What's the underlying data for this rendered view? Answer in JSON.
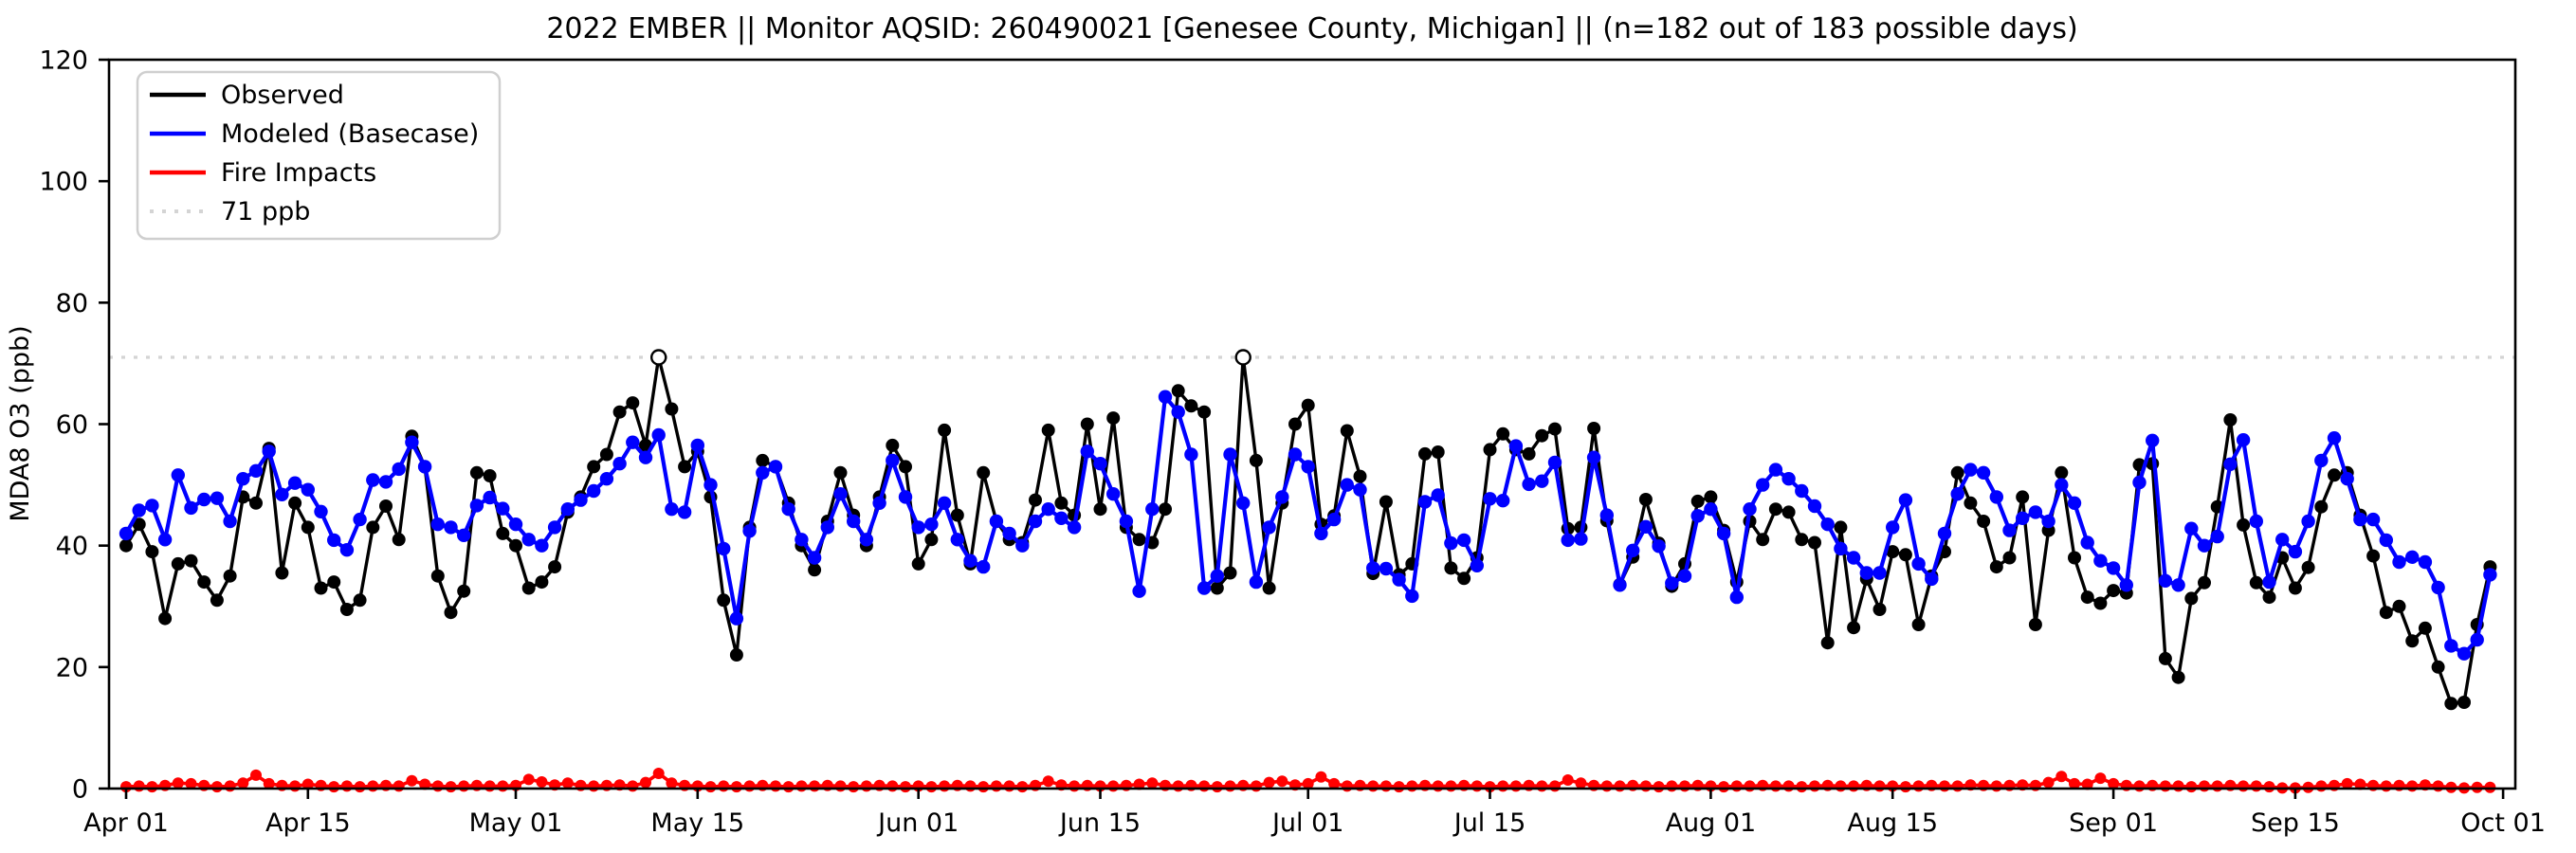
{
  "page": {
    "window_title": "2022 EMBER ozone time series figure"
  },
  "chart_data": {
    "type": "line",
    "title": "2022 EMBER || Monitor AQSID: 260490021 [Genesee County, Michigan] || (n=182 out of 183 possible days)",
    "ylabel": "MDA8 O3 (ppb)",
    "ylim": [
      0,
      120
    ],
    "yticks": [
      0,
      20,
      40,
      60,
      80,
      100,
      120
    ],
    "x_tick_labels": [
      "Apr 01",
      "Apr 15",
      "May 01",
      "May 15",
      "Jun 01",
      "Jun 15",
      "Jul 01",
      "Jul 15",
      "Aug 01",
      "Aug 15",
      "Sep 01",
      "Sep 15",
      "Oct 01"
    ],
    "x_tick_day_offsets": [
      0,
      14,
      30,
      44,
      61,
      75,
      91,
      105,
      122,
      136,
      153,
      167,
      183
    ],
    "n_days": 183,
    "date_range": "Apr 01 - Oct 01",
    "grid": false,
    "legend_position": "upper left",
    "threshold": {
      "value": 71,
      "label": "71 ppb",
      "color": "#d4d4d4"
    },
    "exceedance_day_indices": [
      41,
      86
    ],
    "series": [
      {
        "name": "Observed",
        "color": "#000000",
        "values": [
          40,
          43.5,
          39,
          28,
          37,
          37.5,
          34,
          31,
          35,
          48,
          47,
          56,
          35.5,
          47,
          43,
          33,
          34,
          29.5,
          31,
          43,
          46.5,
          41,
          58,
          53,
          35,
          29,
          32.5,
          52,
          51.5,
          42,
          40,
          33,
          34,
          36.5,
          45.5,
          48,
          53,
          55,
          62,
          63.5,
          56.5,
          71,
          62.5,
          53,
          55.5,
          48,
          31,
          22,
          43,
          54,
          53,
          47,
          40,
          36,
          44,
          52,
          45,
          40,
          48,
          56.5,
          53,
          37,
          41,
          59,
          45,
          37,
          52,
          44,
          41,
          40.5,
          47.5,
          59,
          47,
          45,
          60,
          46,
          61,
          43,
          41,
          40.5,
          46,
          65.5,
          63,
          62,
          33,
          35.5,
          71,
          54,
          33,
          47,
          60,
          63.1,
          43.5,
          44.9,
          58.9,
          51.4,
          35.4,
          47.2,
          35.2,
          37,
          55.1,
          55.4,
          36.3,
          34.6,
          38,
          55.8,
          58.4,
          55.8,
          55.1,
          58.1,
          59.2,
          42.8,
          43,
          59.3,
          44.1,
          33.6,
          38.1,
          47.6,
          40.4,
          33.3,
          37,
          47.3,
          48,
          42.5,
          34,
          44,
          41,
          46,
          45.5,
          41,
          40.5,
          24,
          43,
          26.5,
          34.5,
          29.5,
          39,
          38.5,
          27,
          35,
          39,
          52,
          47,
          44,
          36.5,
          38,
          48,
          27,
          42.5,
          52,
          38,
          31.5,
          30.5,
          32.6,
          32.2,
          53.3,
          53.5,
          21.4,
          18.3,
          31.3,
          33.9,
          46.4,
          60.7,
          43.4,
          33.9,
          31.5,
          38,
          33,
          36.4,
          46.4,
          51.6,
          52,
          45,
          38.3,
          29,
          30,
          24.3,
          26.4,
          20,
          14,
          14.2,
          27,
          36.5
        ]
      },
      {
        "name": "Modeled (Basecase)",
        "color": "#0000ff",
        "values": [
          42,
          45.8,
          46.6,
          41,
          51.6,
          46.2,
          47.6,
          47.8,
          44,
          51,
          52.3,
          55.5,
          48.4,
          50.3,
          49.2,
          45.6,
          40.9,
          39.3,
          44.3,
          50.8,
          50.5,
          52.6,
          57,
          53,
          43.5,
          43,
          41.7,
          46.6,
          47.9,
          46.1,
          43.5,
          41,
          40,
          43,
          46,
          47.5,
          49,
          51,
          53.5,
          57,
          54.5,
          58.2,
          46,
          45.5,
          56.5,
          50,
          39.5,
          28,
          42.4,
          52,
          53,
          46,
          41,
          38,
          43,
          48.5,
          44,
          41,
          47,
          54,
          48,
          43,
          43.5,
          47,
          41,
          37.5,
          36.5,
          44,
          42,
          40,
          44,
          46,
          44.5,
          43,
          55.5,
          53.5,
          48.5,
          44,
          32.5,
          46,
          64.5,
          62,
          55,
          33,
          35,
          55,
          47,
          34,
          43,
          48,
          55,
          53,
          42,
          44.3,
          50,
          49.2,
          36.3,
          36.2,
          34.4,
          31.7,
          47.2,
          48.3,
          40.4,
          40.9,
          36.7,
          47.7,
          47.4,
          56.4,
          50.1,
          50.6,
          53.7,
          40.9,
          41.1,
          54.5,
          45,
          33.5,
          39.2,
          43.1,
          39.9,
          33.8,
          35,
          44.9,
          46,
          42,
          31.5,
          46,
          50,
          52.5,
          51,
          49,
          46.5,
          43.5,
          39.5,
          38,
          35.5,
          35.5,
          43,
          47.5,
          37,
          34.5,
          42,
          48.5,
          52.5,
          52,
          48,
          42.5,
          44.5,
          45.5,
          44,
          50,
          47,
          40.5,
          37.5,
          36.3,
          33.5,
          50.4,
          57.3,
          34.2,
          33.5,
          42.8,
          40,
          41.5,
          53.4,
          57.4,
          44,
          34,
          41,
          39,
          44,
          54,
          57.7,
          51,
          44.3,
          44.3,
          40.9,
          37.3,
          38.1,
          37.3,
          33.1,
          23.5,
          22.2,
          24.5,
          35.2
        ]
      },
      {
        "name": "Fire Impacts",
        "color": "#ff0000",
        "values": [
          0.3,
          0.4,
          0.3,
          0.5,
          0.9,
          0.8,
          0.5,
          0.3,
          0.4,
          0.9,
          2.2,
          0.8,
          0.5,
          0.4,
          0.7,
          0.5,
          0.3,
          0.4,
          0.3,
          0.4,
          0.5,
          0.4,
          1.3,
          0.7,
          0.4,
          0.3,
          0.4,
          0.5,
          0.4,
          0.4,
          0.5,
          1.5,
          1.1,
          0.6,
          0.9,
          0.5,
          0.4,
          0.5,
          0.6,
          0.4,
          1.0,
          2.5,
          0.9,
          0.5,
          0.4,
          0.3,
          0.4,
          0.3,
          0.4,
          0.5,
          0.4,
          0.3,
          0.4,
          0.4,
          0.5,
          0.4,
          0.3,
          0.4,
          0.5,
          0.4,
          0.3,
          0.4,
          0.3,
          0.4,
          0.5,
          0.4,
          0.3,
          0.4,
          0.4,
          0.3,
          0.5,
          1.2,
          0.6,
          0.4,
          0.5,
          0.4,
          0.4,
          0.5,
          0.7,
          0.9,
          0.5,
          0.4,
          0.5,
          0.4,
          0.3,
          0.4,
          0.5,
          0.4,
          1.0,
          1.2,
          0.6,
          0.8,
          1.9,
          0.8,
          0.4,
          0.5,
          0.4,
          0.4,
          0.3,
          0.4,
          0.5,
          0.4,
          0.4,
          0.5,
          0.4,
          0.3,
          0.4,
          0.4,
          0.5,
          0.4,
          0.4,
          1.4,
          0.9,
          0.5,
          0.4,
          0.4,
          0.5,
          0.4,
          0.3,
          0.4,
          0.4,
          0.5,
          0.4,
          0.3,
          0.4,
          0.4,
          0.5,
          0.4,
          0.4,
          0.3,
          0.4,
          0.5,
          0.4,
          0.4,
          0.5,
          0.4,
          0.4,
          0.3,
          0.4,
          0.5,
          0.4,
          0.4,
          0.6,
          0.5,
          0.4,
          0.5,
          0.6,
          0.5,
          1.0,
          2.0,
          0.8,
          0.7,
          1.7,
          0.8,
          0.5,
          0.4,
          0.5,
          0.4,
          0.4,
          0.3,
          0.4,
          0.4,
          0.5,
          0.4,
          0.4,
          0.3,
          0.1,
          0.1,
          0.2,
          0.4,
          0.5,
          0.8,
          0.7,
          0.5,
          0.4,
          0.5,
          0.4,
          0.6,
          0.4,
          0.2,
          0.1,
          0.2,
          0.2
        ]
      }
    ]
  }
}
